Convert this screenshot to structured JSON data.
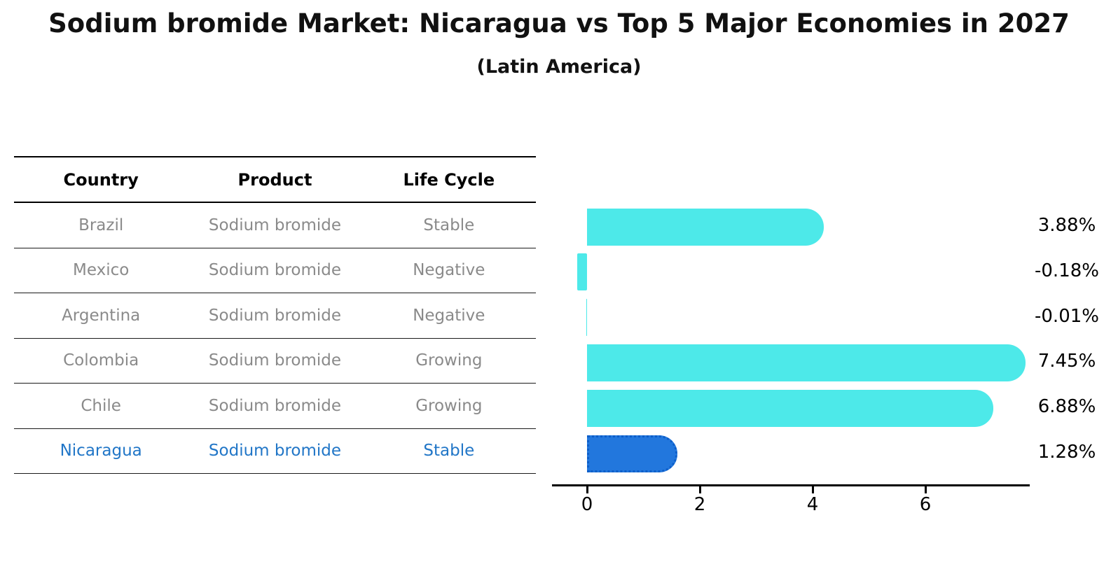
{
  "header": {
    "title": "Sodium bromide Market: Nicaragua vs Top 5 Major Economies in 2027",
    "subtitle": "(Latin America)"
  },
  "table": {
    "columns": [
      "Country",
      "Product",
      "Life Cycle"
    ],
    "rows": [
      {
        "country": "Brazil",
        "product": "Sodium bromide",
        "life_cycle": "Stable",
        "highlight": false
      },
      {
        "country": "Mexico",
        "product": "Sodium bromide",
        "life_cycle": "Negative",
        "highlight": false
      },
      {
        "country": "Argentina",
        "product": "Sodium bromide",
        "life_cycle": "Negative",
        "highlight": false
      },
      {
        "country": "Colombia",
        "product": "Sodium bromide",
        "life_cycle": "Growing",
        "highlight": false
      },
      {
        "country": "Chile",
        "product": "Sodium bromide",
        "life_cycle": "Growing",
        "highlight": false
      },
      {
        "country": "Nicaragua",
        "product": "Sodium bromide",
        "life_cycle": "Stable",
        "highlight": true
      }
    ]
  },
  "chart_data": {
    "type": "bar",
    "orientation": "horizontal",
    "title": "Sodium bromide Market: Nicaragua vs Top 5 Major Economies in 2027",
    "subtitle": "(Latin America)",
    "categories": [
      "Brazil",
      "Mexico",
      "Argentina",
      "Colombia",
      "Chile",
      "Nicaragua"
    ],
    "values": [
      3.88,
      -0.18,
      -0.01,
      7.45,
      6.88,
      1.28
    ],
    "value_labels": [
      "3.88%",
      "-0.18%",
      "-0.01%",
      "7.45%",
      "6.88%",
      "1.28%"
    ],
    "unit": "%",
    "x_ticks": [
      0,
      2,
      4,
      6
    ],
    "xlim": [
      -0.62,
      7.85
    ],
    "grid": false,
    "legend": "none",
    "highlight_index": 5,
    "colors": {
      "default_bar": "#4de9e9",
      "highlight_bar": "#2277dd",
      "highlight_border": "#0d5ec9",
      "highlight_text": "#2176c7",
      "table_text": "#8a8a8a",
      "axis": "#000000"
    }
  }
}
